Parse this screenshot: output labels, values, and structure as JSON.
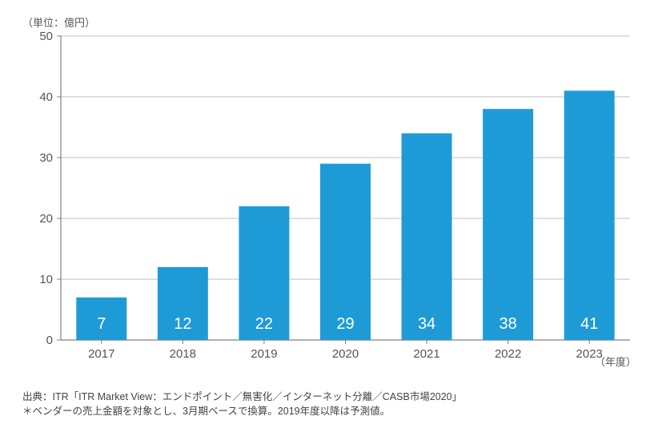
{
  "chart": {
    "type": "bar",
    "unit_label": "（単位：億円）",
    "xaxis_title": "（年度）",
    "categories": [
      "2017",
      "2018",
      "2019",
      "2020",
      "2021",
      "2022",
      "2023"
    ],
    "values": [
      7,
      12,
      22,
      29,
      34,
      38,
      41
    ],
    "bar_color": "#1e9bd7",
    "bar_color_light_bottom": "#1e9bd7",
    "bar_label_color": "#ffffff",
    "ylim": [
      0,
      50
    ],
    "ytick_step": 10,
    "background_color": "#ffffff",
    "grid_color": "#bfbfbf",
    "axis_color": "#808080",
    "tick_fontsize": 15,
    "barlabel_fontsize": 20,
    "bar_width_ratio": 0.62
  },
  "footer": {
    "line1": "出典：ITR「ITR Market View：エンドポイント／無害化／インターネット分離／CASB市場2020」",
    "line2": "＊ベンダーの売上金額を対象とし、3月期ベースで換算。2019年度以降は予測値。"
  }
}
